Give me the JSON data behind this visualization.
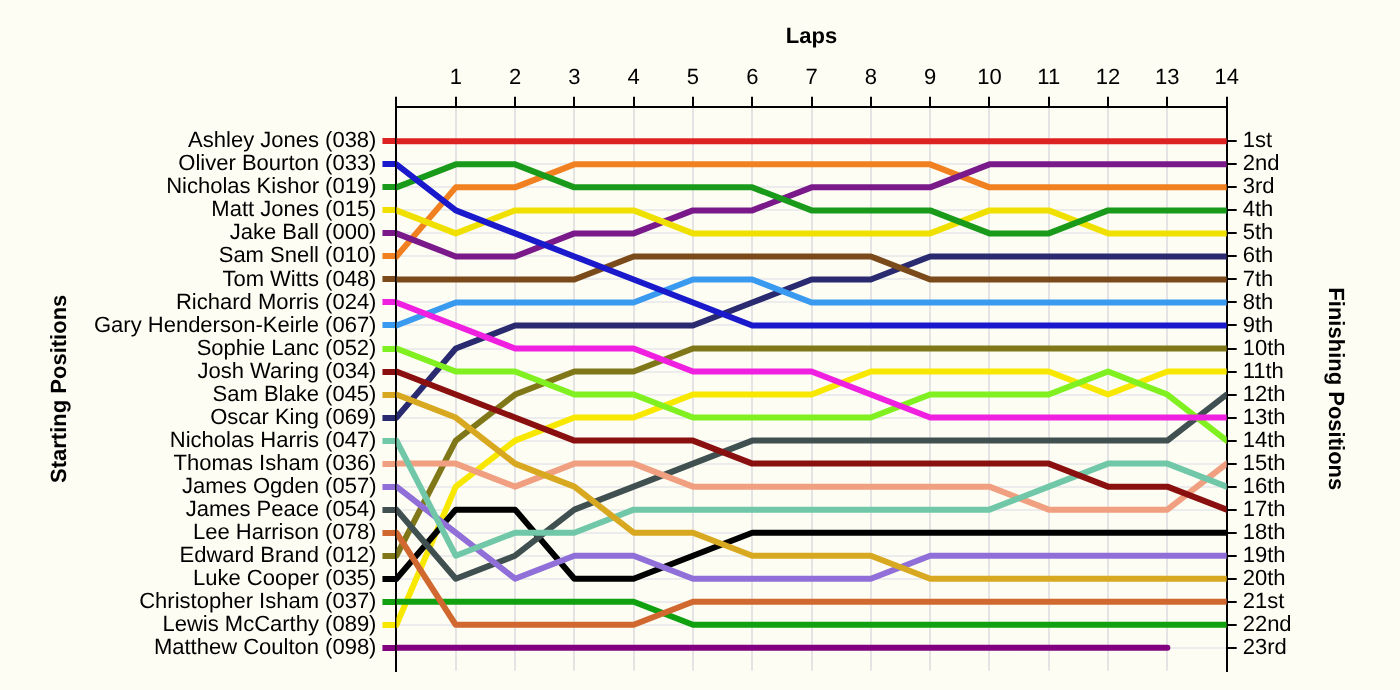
{
  "chart_data": {
    "type": "line",
    "xlabel": "Laps",
    "ylabel": "Finishing Positions",
    "annotations": [
      "Starting Positions"
    ],
    "x": [
      0,
      1,
      2,
      3,
      4,
      5,
      6,
      7,
      8,
      9,
      10,
      11,
      12,
      13,
      14
    ],
    "xlim": [
      0,
      14
    ],
    "xticks": [
      {
        "value": 0,
        "label": null
      },
      1,
      2,
      3,
      4,
      5,
      6,
      7,
      8,
      9,
      10,
      11,
      12,
      13,
      14
    ],
    "ylim": [
      24,
      -0.5
    ],
    "yticks": [
      {
        "value": 1,
        "label": "1st"
      },
      {
        "value": 2,
        "label": "2nd"
      },
      {
        "value": 3,
        "label": "3rd"
      },
      {
        "value": 4,
        "label": "4th"
      },
      {
        "value": 5,
        "label": "5th"
      },
      {
        "value": 6,
        "label": "6th"
      },
      {
        "value": 7,
        "label": "7th"
      },
      {
        "value": 8,
        "label": "8th"
      },
      {
        "value": 9,
        "label": "9th"
      },
      {
        "value": 10,
        "label": "10th"
      },
      {
        "value": 11,
        "label": "11th"
      },
      {
        "value": 12,
        "label": "12th"
      },
      {
        "value": 13,
        "label": "13th"
      },
      {
        "value": 14,
        "label": "14th"
      },
      {
        "value": 15,
        "label": "15th"
      },
      {
        "value": 16,
        "label": "16th"
      },
      {
        "value": 17,
        "label": "17th"
      },
      {
        "value": 18,
        "label": "18th"
      },
      {
        "value": 19,
        "label": "19th"
      },
      {
        "value": 20,
        "label": "20th"
      },
      {
        "value": 21,
        "label": "21st"
      },
      {
        "value": 22,
        "label": "22nd"
      },
      {
        "value": 23,
        "label": "23rd"
      }
    ],
    "grid": true,
    "legend": "left",
    "series": [
      {
        "name": "Ashley Jones (038)",
        "color": "#dd2222",
        "values": [
          1,
          1,
          1,
          1,
          1,
          1,
          1,
          1,
          1,
          1,
          1,
          1,
          1,
          1,
          1
        ]
      },
      {
        "name": "Oliver Bourton (033)",
        "color": "#1a1acc",
        "values": [
          2,
          4,
          5,
          6,
          7,
          8,
          9,
          9,
          9,
          9,
          9,
          9,
          9,
          9,
          9
        ]
      },
      {
        "name": "Nicholas Kishor (019)",
        "color": "#1a9a1a",
        "values": [
          3,
          2,
          2,
          3,
          3,
          3,
          3,
          4,
          4,
          4,
          5,
          5,
          4,
          4,
          4
        ]
      },
      {
        "name": "Matt Jones (015)",
        "color": "#f0e000",
        "values": [
          4,
          5,
          4,
          4,
          4,
          5,
          5,
          5,
          5,
          5,
          4,
          4,
          5,
          5,
          5
        ]
      },
      {
        "name": "Jake Ball (000)",
        "color": "#7a1a8a",
        "values": [
          5,
          6,
          6,
          5,
          5,
          4,
          4,
          3,
          3,
          3,
          2,
          2,
          2,
          2,
          2
        ]
      },
      {
        "name": "Sam Snell (010)",
        "color": "#f08020",
        "values": [
          6,
          3,
          3,
          2,
          2,
          2,
          2,
          2,
          2,
          2,
          3,
          3,
          3,
          3,
          3
        ]
      },
      {
        "name": "Tom Witts (048)",
        "color": "#7a4a1a",
        "values": [
          7,
          7,
          7,
          7,
          6,
          6,
          6,
          6,
          6,
          7,
          7,
          7,
          7,
          7,
          7
        ]
      },
      {
        "name": "Richard Morris (024)",
        "color": "#f020e0",
        "values": [
          8,
          9,
          10,
          10,
          10,
          11,
          11,
          11,
          12,
          13,
          13,
          13,
          13,
          13,
          13
        ]
      },
      {
        "name": "Gary Henderson-Keirle (067)",
        "color": "#3a9af0",
        "values": [
          9,
          8,
          8,
          8,
          8,
          7,
          7,
          8,
          8,
          8,
          8,
          8,
          8,
          8,
          8
        ]
      },
      {
        "name": "Sophie Lanc (052)",
        "color": "#80f020",
        "values": [
          10,
          11,
          11,
          12,
          12,
          13,
          13,
          13,
          13,
          12,
          12,
          12,
          11,
          12,
          14
        ]
      },
      {
        "name": "Josh Waring (034)",
        "color": "#8a1010",
        "values": [
          11,
          12,
          13,
          14,
          14,
          14,
          15,
          15,
          15,
          15,
          15,
          15,
          16,
          16,
          17
        ]
      },
      {
        "name": "Sam Blake (045)",
        "color": "#d8a820",
        "values": [
          12,
          13,
          15,
          16,
          18,
          18,
          19,
          19,
          19,
          20,
          20,
          20,
          20,
          20,
          20
        ]
      },
      {
        "name": "Oscar King (069)",
        "color": "#2a2a70",
        "values": [
          13,
          10,
          9,
          9,
          9,
          9,
          8,
          7,
          7,
          6,
          6,
          6,
          6,
          6,
          6
        ]
      },
      {
        "name": "Nicholas Harris (047)",
        "color": "#70c8a8",
        "values": [
          14,
          19,
          18,
          18,
          17,
          17,
          17,
          17,
          17,
          17,
          17,
          16,
          15,
          15,
          16
        ]
      },
      {
        "name": "Thomas Isham (036)",
        "color": "#f0a080",
        "values": [
          15,
          15,
          16,
          15,
          15,
          16,
          16,
          16,
          16,
          16,
          16,
          17,
          17,
          17,
          15
        ]
      },
      {
        "name": "James Ogden (057)",
        "color": "#9070d8",
        "values": [
          16,
          18,
          20,
          19,
          19,
          20,
          20,
          20,
          20,
          19,
          19,
          19,
          19,
          19,
          19
        ]
      },
      {
        "name": "James Peace (054)",
        "color": "#405050",
        "values": [
          17,
          20,
          19,
          17,
          16,
          15,
          14,
          14,
          14,
          14,
          14,
          14,
          14,
          14,
          12
        ]
      },
      {
        "name": "Lee Harrison (078)",
        "color": "#d06830",
        "values": [
          18,
          22,
          22,
          22,
          22,
          21,
          21,
          21,
          21,
          21,
          21,
          21,
          21,
          21,
          21
        ]
      },
      {
        "name": "Edward Brand (012)",
        "color": "#807818",
        "values": [
          19,
          14,
          12,
          11,
          11,
          10,
          10,
          10,
          10,
          10,
          10,
          10,
          10,
          10,
          10
        ]
      },
      {
        "name": "Luke Cooper (035)",
        "color": "#000000",
        "values": [
          20,
          17,
          17,
          20,
          20,
          19,
          18,
          18,
          18,
          18,
          18,
          18,
          18,
          18,
          18
        ]
      },
      {
        "name": "Christopher Isham (037)",
        "color": "#10a010",
        "values": [
          21,
          21,
          21,
          21,
          21,
          22,
          22,
          22,
          22,
          22,
          22,
          22,
          22,
          22,
          22
        ]
      },
      {
        "name": "Lewis McCarthy (089)",
        "color": "#f8e800",
        "values": [
          22,
          16,
          14,
          13,
          13,
          12,
          12,
          12,
          11,
          11,
          11,
          11,
          12,
          11,
          11
        ]
      },
      {
        "name": "Matthew Coulton (098)",
        "color": "#800080",
        "values": [
          23,
          23,
          23,
          23,
          23,
          23,
          23,
          23,
          23,
          23,
          23,
          23,
          23,
          23,
          null
        ]
      }
    ]
  }
}
